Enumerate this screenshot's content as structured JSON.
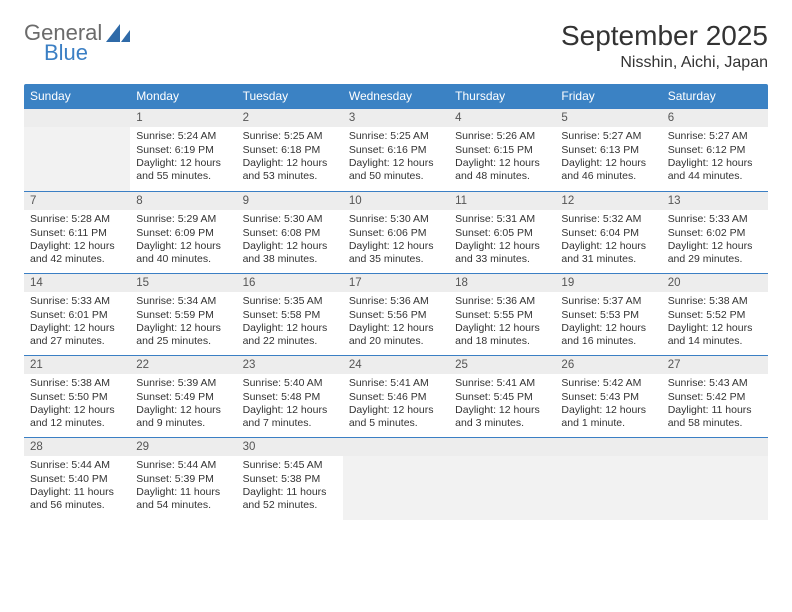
{
  "logo": {
    "word1": "General",
    "word2": "Blue"
  },
  "title": "September 2025",
  "location": "Nisshin, Aichi, Japan",
  "colors": {
    "header_bg": "#3b82c4",
    "header_text": "#ffffff",
    "border": "#3b7fc4",
    "daynum_bg": "#ededed",
    "empty_bg": "#f2f2f2",
    "text": "#333333",
    "logo_gray": "#6b6b6b",
    "logo_blue": "#3b7fc4"
  },
  "weekdays": [
    "Sunday",
    "Monday",
    "Tuesday",
    "Wednesday",
    "Thursday",
    "Friday",
    "Saturday"
  ],
  "grid": [
    [
      {
        "empty": true
      },
      {
        "day": "1",
        "sunrise": "5:24 AM",
        "sunset": "6:19 PM",
        "daylight": "12 hours and 55 minutes."
      },
      {
        "day": "2",
        "sunrise": "5:25 AM",
        "sunset": "6:18 PM",
        "daylight": "12 hours and 53 minutes."
      },
      {
        "day": "3",
        "sunrise": "5:25 AM",
        "sunset": "6:16 PM",
        "daylight": "12 hours and 50 minutes."
      },
      {
        "day": "4",
        "sunrise": "5:26 AM",
        "sunset": "6:15 PM",
        "daylight": "12 hours and 48 minutes."
      },
      {
        "day": "5",
        "sunrise": "5:27 AM",
        "sunset": "6:13 PM",
        "daylight": "12 hours and 46 minutes."
      },
      {
        "day": "6",
        "sunrise": "5:27 AM",
        "sunset": "6:12 PM",
        "daylight": "12 hours and 44 minutes."
      }
    ],
    [
      {
        "day": "7",
        "sunrise": "5:28 AM",
        "sunset": "6:11 PM",
        "daylight": "12 hours and 42 minutes."
      },
      {
        "day": "8",
        "sunrise": "5:29 AM",
        "sunset": "6:09 PM",
        "daylight": "12 hours and 40 minutes."
      },
      {
        "day": "9",
        "sunrise": "5:30 AM",
        "sunset": "6:08 PM",
        "daylight": "12 hours and 38 minutes."
      },
      {
        "day": "10",
        "sunrise": "5:30 AM",
        "sunset": "6:06 PM",
        "daylight": "12 hours and 35 minutes."
      },
      {
        "day": "11",
        "sunrise": "5:31 AM",
        "sunset": "6:05 PM",
        "daylight": "12 hours and 33 minutes."
      },
      {
        "day": "12",
        "sunrise": "5:32 AM",
        "sunset": "6:04 PM",
        "daylight": "12 hours and 31 minutes."
      },
      {
        "day": "13",
        "sunrise": "5:33 AM",
        "sunset": "6:02 PM",
        "daylight": "12 hours and 29 minutes."
      }
    ],
    [
      {
        "day": "14",
        "sunrise": "5:33 AM",
        "sunset": "6:01 PM",
        "daylight": "12 hours and 27 minutes."
      },
      {
        "day": "15",
        "sunrise": "5:34 AM",
        "sunset": "5:59 PM",
        "daylight": "12 hours and 25 minutes."
      },
      {
        "day": "16",
        "sunrise": "5:35 AM",
        "sunset": "5:58 PM",
        "daylight": "12 hours and 22 minutes."
      },
      {
        "day": "17",
        "sunrise": "5:36 AM",
        "sunset": "5:56 PM",
        "daylight": "12 hours and 20 minutes."
      },
      {
        "day": "18",
        "sunrise": "5:36 AM",
        "sunset": "5:55 PM",
        "daylight": "12 hours and 18 minutes."
      },
      {
        "day": "19",
        "sunrise": "5:37 AM",
        "sunset": "5:53 PM",
        "daylight": "12 hours and 16 minutes."
      },
      {
        "day": "20",
        "sunrise": "5:38 AM",
        "sunset": "5:52 PM",
        "daylight": "12 hours and 14 minutes."
      }
    ],
    [
      {
        "day": "21",
        "sunrise": "5:38 AM",
        "sunset": "5:50 PM",
        "daylight": "12 hours and 12 minutes."
      },
      {
        "day": "22",
        "sunrise": "5:39 AM",
        "sunset": "5:49 PM",
        "daylight": "12 hours and 9 minutes."
      },
      {
        "day": "23",
        "sunrise": "5:40 AM",
        "sunset": "5:48 PM",
        "daylight": "12 hours and 7 minutes."
      },
      {
        "day": "24",
        "sunrise": "5:41 AM",
        "sunset": "5:46 PM",
        "daylight": "12 hours and 5 minutes."
      },
      {
        "day": "25",
        "sunrise": "5:41 AM",
        "sunset": "5:45 PM",
        "daylight": "12 hours and 3 minutes."
      },
      {
        "day": "26",
        "sunrise": "5:42 AM",
        "sunset": "5:43 PM",
        "daylight": "12 hours and 1 minute."
      },
      {
        "day": "27",
        "sunrise": "5:43 AM",
        "sunset": "5:42 PM",
        "daylight": "11 hours and 58 minutes."
      }
    ],
    [
      {
        "day": "28",
        "sunrise": "5:44 AM",
        "sunset": "5:40 PM",
        "daylight": "11 hours and 56 minutes."
      },
      {
        "day": "29",
        "sunrise": "5:44 AM",
        "sunset": "5:39 PM",
        "daylight": "11 hours and 54 minutes."
      },
      {
        "day": "30",
        "sunrise": "5:45 AM",
        "sunset": "5:38 PM",
        "daylight": "11 hours and 52 minutes."
      },
      {
        "empty": true
      },
      {
        "empty": true
      },
      {
        "empty": true
      },
      {
        "empty": true
      }
    ]
  ],
  "labels": {
    "sunrise": "Sunrise:",
    "sunset": "Sunset:",
    "daylight": "Daylight:"
  }
}
